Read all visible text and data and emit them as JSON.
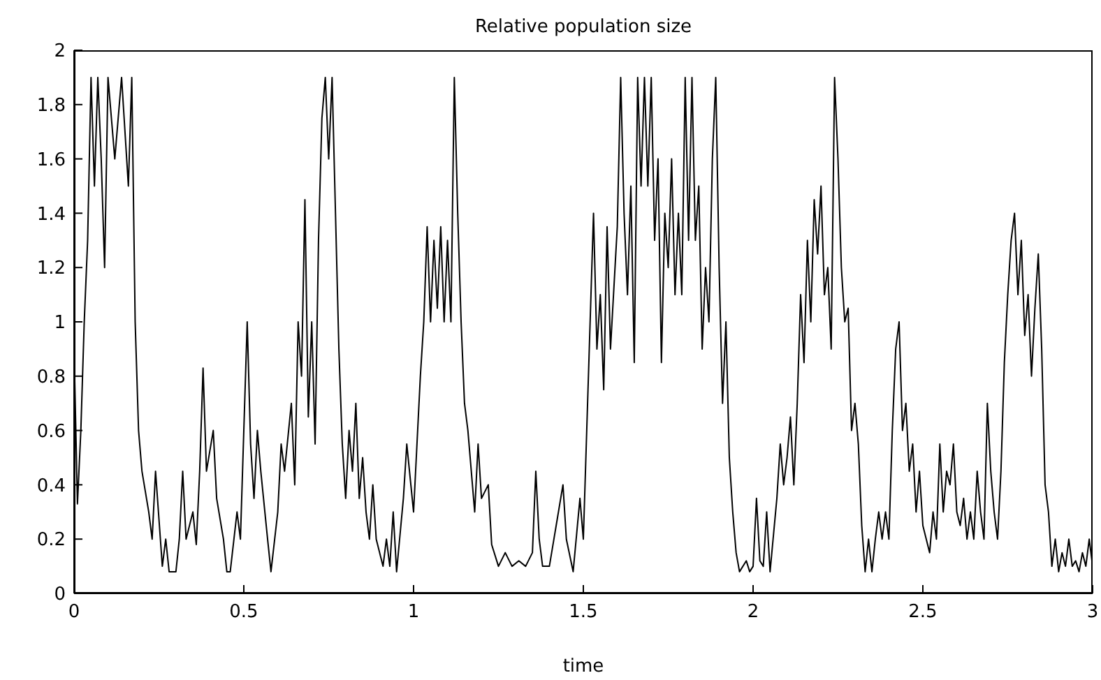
{
  "chart_data": {
    "type": "line",
    "title": "Relative population size",
    "xlabel": "time",
    "xlim": [
      0,
      3
    ],
    "xticks": [
      0,
      0.5,
      1,
      1.5,
      2,
      2.5,
      3
    ],
    "ylim": [
      0,
      2
    ],
    "yticks": [
      0,
      0.2,
      0.4,
      0.6,
      0.8,
      1,
      1.2,
      1.4,
      1.6,
      1.8,
      2
    ],
    "grid": false,
    "marker": "none",
    "line_style": "solid",
    "series": [
      {
        "color": "#000000",
        "x": [
          0,
          0.01,
          0.02,
          0.03,
          0.04,
          0.05,
          0.06,
          0.07,
          0.08,
          0.09,
          0.1,
          0.12,
          0.14,
          0.16,
          0.17,
          0.18,
          0.19,
          0.2,
          0.22,
          0.23,
          0.24,
          0.26,
          0.27,
          0.28,
          0.3,
          0.31,
          0.32,
          0.33,
          0.35,
          0.36,
          0.37,
          0.38,
          0.39,
          0.41,
          0.42,
          0.44,
          0.45,
          0.46,
          0.48,
          0.49,
          0.51,
          0.52,
          0.53,
          0.54,
          0.55,
          0.57,
          0.58,
          0.6,
          0.61,
          0.62,
          0.64,
          0.65,
          0.66,
          0.67,
          0.68,
          0.69,
          0.7,
          0.71,
          0.72,
          0.73,
          0.74,
          0.75,
          0.76,
          0.77,
          0.78,
          0.79,
          0.8,
          0.81,
          0.82,
          0.83,
          0.84,
          0.85,
          0.86,
          0.87,
          0.88,
          0.89,
          0.91,
          0.92,
          0.93,
          0.94,
          0.95,
          0.97,
          0.98,
          1,
          1.02,
          1.03,
          1.04,
          1.05,
          1.06,
          1.07,
          1.08,
          1.09,
          1.1,
          1.11,
          1.12,
          1.13,
          1.14,
          1.15,
          1.16,
          1.17,
          1.18,
          1.19,
          1.2,
          1.22,
          1.23,
          1.25,
          1.27,
          1.29,
          1.31,
          1.33,
          1.35,
          1.36,
          1.37,
          1.38,
          1.4,
          1.42,
          1.44,
          1.45,
          1.47,
          1.49,
          1.5,
          1.52,
          1.53,
          1.54,
          1.55,
          1.56,
          1.57,
          1.58,
          1.6,
          1.61,
          1.62,
          1.63,
          1.64,
          1.65,
          1.66,
          1.67,
          1.68,
          1.69,
          1.7,
          1.71,
          1.72,
          1.73,
          1.74,
          1.75,
          1.76,
          1.77,
          1.78,
          1.79,
          1.8,
          1.81,
          1.82,
          1.83,
          1.84,
          1.85,
          1.86,
          1.87,
          1.88,
          1.89,
          1.9,
          1.91,
          1.92,
          1.93,
          1.94,
          1.95,
          1.96,
          1.98,
          1.99,
          2,
          2.01,
          2.02,
          2.03,
          2.04,
          2.05,
          2.07,
          2.08,
          2.09,
          2.1,
          2.11,
          2.12,
          2.13,
          2.14,
          2.15,
          2.16,
          2.17,
          2.18,
          2.19,
          2.2,
          2.21,
          2.22,
          2.23,
          2.24,
          2.25,
          2.26,
          2.27,
          2.28,
          2.29,
          2.3,
          2.31,
          2.32,
          2.33,
          2.34,
          2.35,
          2.36,
          2.37,
          2.38,
          2.39,
          2.4,
          2.41,
          2.42,
          2.43,
          2.44,
          2.45,
          2.46,
          2.47,
          2.48,
          2.49,
          2.5,
          2.51,
          2.52,
          2.53,
          2.54,
          2.55,
          2.56,
          2.57,
          2.58,
          2.59,
          2.6,
          2.61,
          2.62,
          2.63,
          2.64,
          2.65,
          2.66,
          2.67,
          2.68,
          2.69,
          2.7,
          2.71,
          2.72,
          2.73,
          2.74,
          2.75,
          2.76,
          2.77,
          2.78,
          2.79,
          2.8,
          2.81,
          2.82,
          2.83,
          2.84,
          2.85,
          2.86,
          2.87,
          2.88,
          2.89,
          2.9,
          2.91,
          2.92,
          2.93,
          2.94,
          2.95,
          2.96,
          2.97,
          2.98,
          2.99,
          3
        ],
        "values": [
          0.9,
          0.33,
          0.6,
          1.0,
          1.3,
          1.9,
          1.5,
          1.9,
          1.6,
          1.2,
          1.9,
          1.6,
          1.9,
          1.5,
          1.9,
          1.0,
          0.6,
          0.45,
          0.3,
          0.2,
          0.45,
          0.1,
          0.2,
          0.08,
          0.08,
          0.2,
          0.45,
          0.2,
          0.3,
          0.18,
          0.45,
          0.83,
          0.45,
          0.6,
          0.35,
          0.2,
          0.08,
          0.08,
          0.3,
          0.2,
          1.0,
          0.55,
          0.35,
          0.6,
          0.45,
          0.2,
          0.08,
          0.3,
          0.55,
          0.45,
          0.7,
          0.4,
          1.0,
          0.8,
          1.45,
          0.65,
          1.0,
          0.55,
          1.3,
          1.75,
          1.9,
          1.6,
          1.9,
          1.4,
          0.9,
          0.55,
          0.35,
          0.6,
          0.45,
          0.7,
          0.35,
          0.5,
          0.3,
          0.2,
          0.4,
          0.2,
          0.1,
          0.2,
          0.1,
          0.3,
          0.08,
          0.35,
          0.55,
          0.3,
          0.8,
          1.0,
          1.35,
          1.0,
          1.3,
          1.05,
          1.35,
          1.0,
          1.3,
          1.0,
          1.9,
          1.4,
          1.0,
          0.7,
          0.6,
          0.45,
          0.3,
          0.55,
          0.35,
          0.4,
          0.18,
          0.1,
          0.15,
          0.1,
          0.12,
          0.1,
          0.15,
          0.45,
          0.2,
          0.1,
          0.1,
          0.25,
          0.4,
          0.2,
          0.08,
          0.35,
          0.2,
          1.0,
          1.4,
          0.9,
          1.1,
          0.75,
          1.35,
          0.9,
          1.35,
          1.9,
          1.4,
          1.1,
          1.5,
          0.85,
          1.9,
          1.5,
          1.9,
          1.5,
          1.9,
          1.3,
          1.6,
          0.85,
          1.4,
          1.2,
          1.6,
          1.1,
          1.4,
          1.1,
          1.9,
          1.3,
          1.9,
          1.3,
          1.5,
          0.9,
          1.2,
          1.0,
          1.6,
          1.9,
          1.2,
          0.7,
          1.0,
          0.5,
          0.3,
          0.15,
          0.08,
          0.12,
          0.08,
          0.1,
          0.35,
          0.12,
          0.1,
          0.3,
          0.08,
          0.35,
          0.55,
          0.4,
          0.5,
          0.65,
          0.4,
          0.7,
          1.1,
          0.85,
          1.3,
          1.0,
          1.45,
          1.25,
          1.5,
          1.1,
          1.2,
          0.9,
          1.9,
          1.6,
          1.2,
          1.0,
          1.05,
          0.6,
          0.7,
          0.55,
          0.25,
          0.08,
          0.2,
          0.08,
          0.2,
          0.3,
          0.2,
          0.3,
          0.2,
          0.6,
          0.9,
          1.0,
          0.6,
          0.7,
          0.45,
          0.55,
          0.3,
          0.45,
          0.25,
          0.2,
          0.15,
          0.3,
          0.2,
          0.55,
          0.3,
          0.45,
          0.4,
          0.55,
          0.3,
          0.25,
          0.35,
          0.2,
          0.3,
          0.2,
          0.45,
          0.3,
          0.2,
          0.7,
          0.45,
          0.3,
          0.2,
          0.45,
          0.85,
          1.1,
          1.3,
          1.4,
          1.1,
          1.3,
          0.95,
          1.1,
          0.8,
          1.05,
          1.25,
          0.9,
          0.4,
          0.3,
          0.1,
          0.2,
          0.08,
          0.15,
          0.1,
          0.2,
          0.1,
          0.12,
          0.08,
          0.15,
          0.1,
          0.2,
          0.1
        ]
      }
    ]
  }
}
